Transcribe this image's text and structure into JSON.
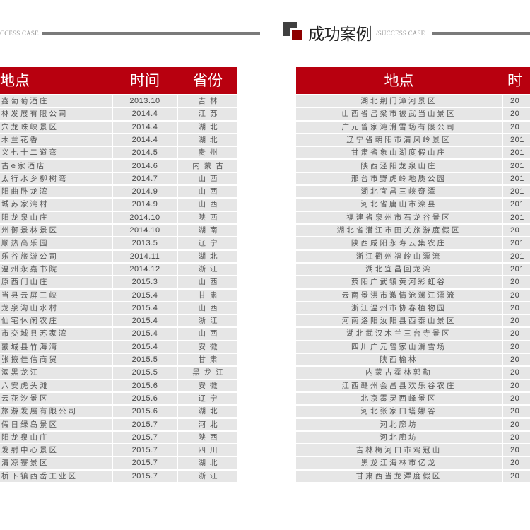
{
  "header": {
    "subtitle_left": "CCESS CASE",
    "title": "成功案例",
    "subtitle_right": "/SUCCESS CASE",
    "accent_color": "#b8000f"
  },
  "left_table": {
    "columns": [
      "地点",
      "时间",
      "省份"
    ],
    "rows": [
      [
        "鑫葡萄酒庄",
        "2013.10",
        "吉林"
      ],
      [
        "林发展有限公司",
        "2014.4",
        "江苏"
      ],
      [
        "穴龙珠峡景区",
        "2014.4",
        "湖北"
      ],
      [
        "木兰花香",
        "2014.4",
        "湖北"
      ],
      [
        "义七十二道弯",
        "2014.5",
        "贵州"
      ],
      [
        "古e家酒店",
        "2014.6",
        "内蒙古"
      ],
      [
        "太行水乡柳树弯",
        "2014.7",
        "山西"
      ],
      [
        "阳曲卧龙湾",
        "2014.9",
        "山西"
      ],
      [
        "城苏家湾村",
        "2014.9",
        "山西"
      ],
      [
        "阳龙泉山庄",
        "2014.10",
        "陕西"
      ],
      [
        "州御景林景区",
        "2014.10",
        "湖南"
      ],
      [
        "顺热高乐园",
        "2013.5",
        "辽宁"
      ],
      [
        "乐谷旅游公司",
        "2014.11",
        "湖北"
      ],
      [
        "温州永嘉书院",
        "2014.12",
        "浙江"
      ],
      [
        "原西门山庄",
        "2015.3",
        "山西"
      ],
      [
        "当县云屏三峡",
        "2015.4",
        "甘肃"
      ],
      [
        "龙泉沟山水村",
        "2015.4",
        "山西"
      ],
      [
        "仙宅休闲农庄",
        "2015.4",
        "浙江"
      ],
      [
        "市交城县苏家湾",
        "2015.4",
        "山西"
      ],
      [
        "蒙城县竹海湾",
        "2015.4",
        "安徽"
      ],
      [
        "张掖佳信商贸",
        "2015.5",
        "甘肃"
      ],
      [
        "滨黑龙江",
        "2015.5",
        "黑龙江"
      ],
      [
        "六安虎头滩",
        "2015.6",
        "安徽"
      ],
      [
        "云花汐景区",
        "2015.6",
        "辽宁"
      ],
      [
        "旅游发展有限公司",
        "2015.6",
        "湖北"
      ],
      [
        "假日绿岛景区",
        "2015.7",
        "河北"
      ],
      [
        "阳龙泉山庄",
        "2015.7",
        "陕西"
      ],
      [
        "发射中心景区",
        "2015.7",
        "四川"
      ],
      [
        "清凉寨景区",
        "2015.7",
        "湖北"
      ],
      [
        "桥下镇西岙工业区",
        "2015.7",
        "浙江"
      ]
    ]
  },
  "right_table": {
    "columns": [
      "地点",
      "时"
    ],
    "rows": [
      [
        "湖北荆门漳河景区",
        "20"
      ],
      [
        "山西省吕梁市被武当山景区",
        "20"
      ],
      [
        "广元曾家湾滑雪场有限公司",
        "20"
      ],
      [
        "辽宁省朝阳市清风岭景区",
        "201"
      ],
      [
        "甘肃省象山湖度假山庄",
        "201"
      ],
      [
        "陕西泾阳龙泉山庄",
        "201"
      ],
      [
        "邢台市野虎岭地质公园",
        "201"
      ],
      [
        "湖北宜昌三峡奇潭",
        "201"
      ],
      [
        "河北省唐山市滦县",
        "201"
      ],
      [
        "福建省泉州市石龙谷景区",
        "201"
      ],
      [
        "湖北省潜江市田关旅游度假区",
        "20"
      ],
      [
        "陕西咸阳永寿云集农庄",
        "201"
      ],
      [
        "浙江衢州福岭山漂流",
        "201"
      ],
      [
        "湖北宜昌回龙湾",
        "201"
      ],
      [
        "荥阳广武镇黄河彩虹谷",
        "20"
      ],
      [
        "云南景洪市激情沧澜江漂流",
        "20"
      ],
      [
        "浙江温州市协春植物园",
        "20"
      ],
      [
        "河南洛阳汝阳县西泰山景区",
        "20"
      ],
      [
        "湖北武汉木兰三台寺景区",
        "20"
      ],
      [
        "四川广元曾家山滑雪场",
        "20"
      ],
      [
        "陕西榆林",
        "20"
      ],
      [
        "内蒙古霍林郭勒",
        "20"
      ],
      [
        "江西赣州会昌县欢乐谷农庄",
        "20"
      ],
      [
        "北京雾灵西峰景区",
        "20"
      ],
      [
        "河北张家口塔娜谷",
        "20"
      ],
      [
        "河北廊坊",
        "20"
      ],
      [
        "河北廊坊",
        "20"
      ],
      [
        "吉林梅河口市鸡冠山",
        "20"
      ],
      [
        "黑龙江海林市亿龙",
        "20"
      ],
      [
        "甘肃西当龙潭度假区",
        "20"
      ]
    ]
  }
}
